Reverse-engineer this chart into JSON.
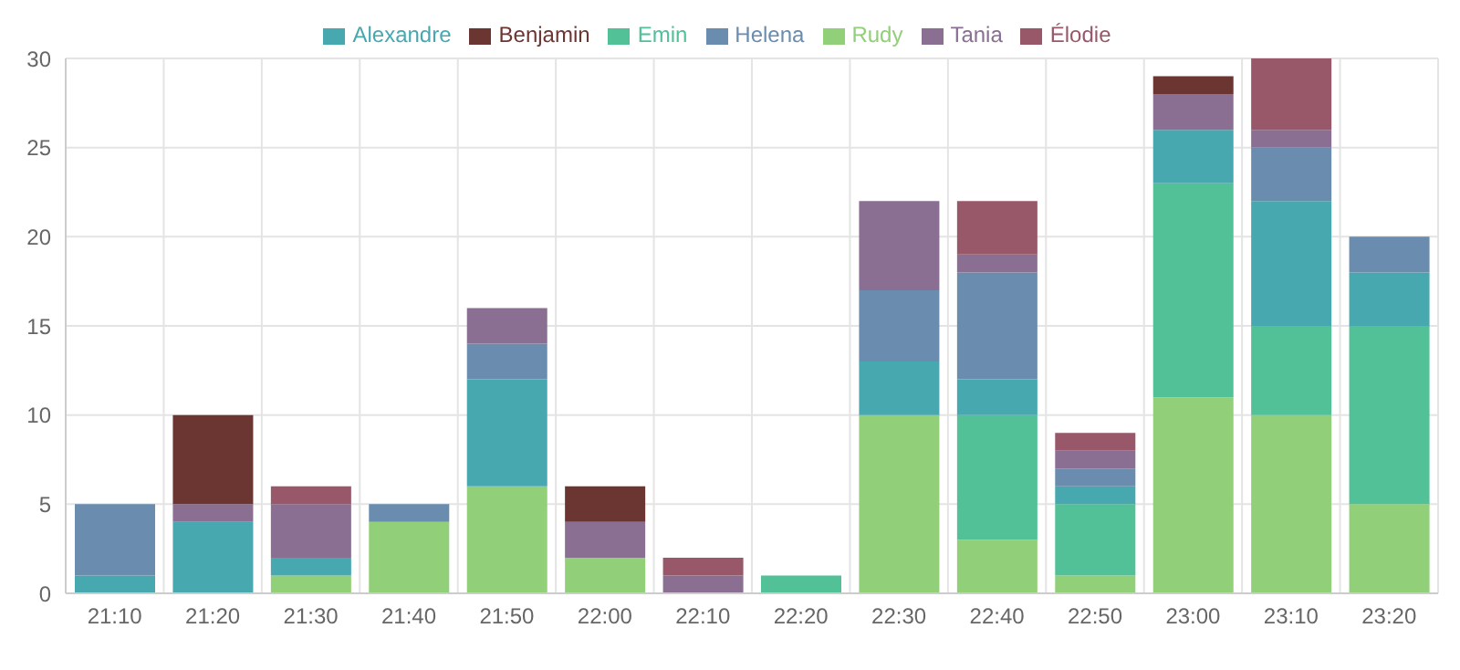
{
  "chart_data": {
    "type": "bar",
    "stacked": true,
    "categories": [
      "21:10",
      "21:20",
      "21:30",
      "21:40",
      "21:50",
      "22:00",
      "22:10",
      "22:20",
      "22:30",
      "22:40",
      "22:50",
      "23:00",
      "23:10",
      "23:20"
    ],
    "series": [
      {
        "name": "Rudy",
        "color": "#91cf78",
        "values": [
          0,
          0,
          1,
          4,
          6,
          2,
          0,
          0,
          10,
          3,
          1,
          11,
          10,
          5
        ]
      },
      {
        "name": "Emin",
        "color": "#52c197",
        "values": [
          0,
          0,
          0,
          0,
          0,
          0,
          0,
          1,
          0,
          7,
          4,
          12,
          5,
          10
        ]
      },
      {
        "name": "Alexandre",
        "color": "#47a8b0",
        "values": [
          1,
          4,
          1,
          0,
          6,
          0,
          0,
          0,
          3,
          2,
          1,
          3,
          7,
          3
        ]
      },
      {
        "name": "Helena",
        "color": "#6a8caf",
        "values": [
          4,
          0,
          0,
          1,
          2,
          0,
          0,
          0,
          4,
          6,
          1,
          0,
          3,
          2
        ]
      },
      {
        "name": "Tania",
        "color": "#8b6f93",
        "values": [
          0,
          1,
          3,
          0,
          2,
          2,
          1,
          0,
          5,
          1,
          1,
          2,
          1,
          0
        ]
      },
      {
        "name": "Élodie",
        "color": "#985869",
        "values": [
          0,
          0,
          1,
          0,
          0,
          0,
          1,
          0,
          0,
          3,
          1,
          0,
          4,
          0
        ]
      },
      {
        "name": "Benjamin",
        "color": "#6b3532",
        "values": [
          0,
          5,
          0,
          0,
          0,
          2,
          0,
          0,
          0,
          0,
          0,
          1,
          0,
          0
        ]
      }
    ],
    "ylim": [
      0,
      30
    ],
    "yticks": [
      0,
      5,
      10,
      15,
      20,
      25,
      30
    ],
    "grid": true,
    "legend": "top"
  }
}
